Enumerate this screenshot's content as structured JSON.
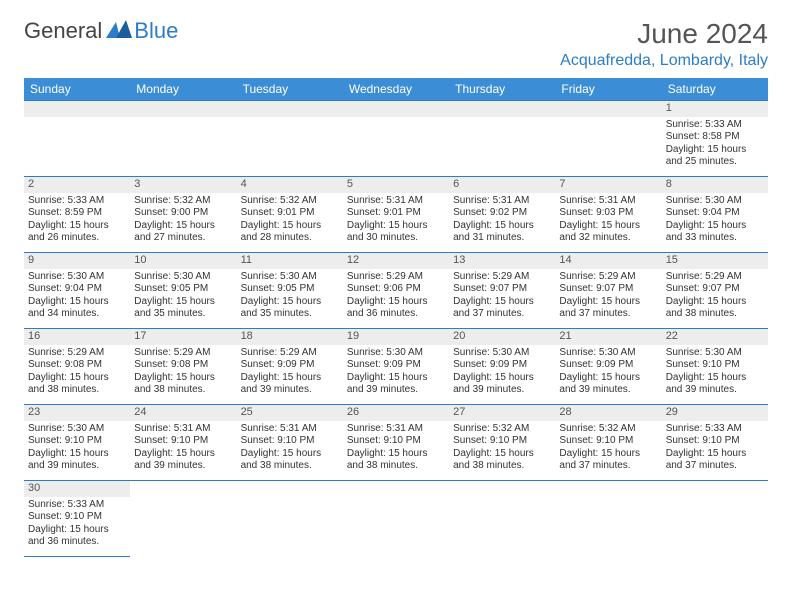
{
  "brand": {
    "part1": "General",
    "part2": "Blue"
  },
  "title": "June 2024",
  "location": "Acquafredda, Lombardy, Italy",
  "colors": {
    "header_bg": "#3b8ed6",
    "accent": "#2b7dc9",
    "daynum_bg": "#ededed",
    "text": "#333333",
    "title_text": "#555555"
  },
  "weekdays": [
    "Sunday",
    "Monday",
    "Tuesday",
    "Wednesday",
    "Thursday",
    "Friday",
    "Saturday"
  ],
  "weeks": [
    [
      null,
      null,
      null,
      null,
      null,
      null,
      {
        "n": "1",
        "sunrise": "Sunrise: 5:33 AM",
        "sunset": "Sunset: 8:58 PM",
        "day1": "Daylight: 15 hours",
        "day2": "and 25 minutes."
      }
    ],
    [
      {
        "n": "2",
        "sunrise": "Sunrise: 5:33 AM",
        "sunset": "Sunset: 8:59 PM",
        "day1": "Daylight: 15 hours",
        "day2": "and 26 minutes."
      },
      {
        "n": "3",
        "sunrise": "Sunrise: 5:32 AM",
        "sunset": "Sunset: 9:00 PM",
        "day1": "Daylight: 15 hours",
        "day2": "and 27 minutes."
      },
      {
        "n": "4",
        "sunrise": "Sunrise: 5:32 AM",
        "sunset": "Sunset: 9:01 PM",
        "day1": "Daylight: 15 hours",
        "day2": "and 28 minutes."
      },
      {
        "n": "5",
        "sunrise": "Sunrise: 5:31 AM",
        "sunset": "Sunset: 9:01 PM",
        "day1": "Daylight: 15 hours",
        "day2": "and 30 minutes."
      },
      {
        "n": "6",
        "sunrise": "Sunrise: 5:31 AM",
        "sunset": "Sunset: 9:02 PM",
        "day1": "Daylight: 15 hours",
        "day2": "and 31 minutes."
      },
      {
        "n": "7",
        "sunrise": "Sunrise: 5:31 AM",
        "sunset": "Sunset: 9:03 PM",
        "day1": "Daylight: 15 hours",
        "day2": "and 32 minutes."
      },
      {
        "n": "8",
        "sunrise": "Sunrise: 5:30 AM",
        "sunset": "Sunset: 9:04 PM",
        "day1": "Daylight: 15 hours",
        "day2": "and 33 minutes."
      }
    ],
    [
      {
        "n": "9",
        "sunrise": "Sunrise: 5:30 AM",
        "sunset": "Sunset: 9:04 PM",
        "day1": "Daylight: 15 hours",
        "day2": "and 34 minutes."
      },
      {
        "n": "10",
        "sunrise": "Sunrise: 5:30 AM",
        "sunset": "Sunset: 9:05 PM",
        "day1": "Daylight: 15 hours",
        "day2": "and 35 minutes."
      },
      {
        "n": "11",
        "sunrise": "Sunrise: 5:30 AM",
        "sunset": "Sunset: 9:05 PM",
        "day1": "Daylight: 15 hours",
        "day2": "and 35 minutes."
      },
      {
        "n": "12",
        "sunrise": "Sunrise: 5:29 AM",
        "sunset": "Sunset: 9:06 PM",
        "day1": "Daylight: 15 hours",
        "day2": "and 36 minutes."
      },
      {
        "n": "13",
        "sunrise": "Sunrise: 5:29 AM",
        "sunset": "Sunset: 9:07 PM",
        "day1": "Daylight: 15 hours",
        "day2": "and 37 minutes."
      },
      {
        "n": "14",
        "sunrise": "Sunrise: 5:29 AM",
        "sunset": "Sunset: 9:07 PM",
        "day1": "Daylight: 15 hours",
        "day2": "and 37 minutes."
      },
      {
        "n": "15",
        "sunrise": "Sunrise: 5:29 AM",
        "sunset": "Sunset: 9:07 PM",
        "day1": "Daylight: 15 hours",
        "day2": "and 38 minutes."
      }
    ],
    [
      {
        "n": "16",
        "sunrise": "Sunrise: 5:29 AM",
        "sunset": "Sunset: 9:08 PM",
        "day1": "Daylight: 15 hours",
        "day2": "and 38 minutes."
      },
      {
        "n": "17",
        "sunrise": "Sunrise: 5:29 AM",
        "sunset": "Sunset: 9:08 PM",
        "day1": "Daylight: 15 hours",
        "day2": "and 38 minutes."
      },
      {
        "n": "18",
        "sunrise": "Sunrise: 5:29 AM",
        "sunset": "Sunset: 9:09 PM",
        "day1": "Daylight: 15 hours",
        "day2": "and 39 minutes."
      },
      {
        "n": "19",
        "sunrise": "Sunrise: 5:30 AM",
        "sunset": "Sunset: 9:09 PM",
        "day1": "Daylight: 15 hours",
        "day2": "and 39 minutes."
      },
      {
        "n": "20",
        "sunrise": "Sunrise: 5:30 AM",
        "sunset": "Sunset: 9:09 PM",
        "day1": "Daylight: 15 hours",
        "day2": "and 39 minutes."
      },
      {
        "n": "21",
        "sunrise": "Sunrise: 5:30 AM",
        "sunset": "Sunset: 9:09 PM",
        "day1": "Daylight: 15 hours",
        "day2": "and 39 minutes."
      },
      {
        "n": "22",
        "sunrise": "Sunrise: 5:30 AM",
        "sunset": "Sunset: 9:10 PM",
        "day1": "Daylight: 15 hours",
        "day2": "and 39 minutes."
      }
    ],
    [
      {
        "n": "23",
        "sunrise": "Sunrise: 5:30 AM",
        "sunset": "Sunset: 9:10 PM",
        "day1": "Daylight: 15 hours",
        "day2": "and 39 minutes."
      },
      {
        "n": "24",
        "sunrise": "Sunrise: 5:31 AM",
        "sunset": "Sunset: 9:10 PM",
        "day1": "Daylight: 15 hours",
        "day2": "and 39 minutes."
      },
      {
        "n": "25",
        "sunrise": "Sunrise: 5:31 AM",
        "sunset": "Sunset: 9:10 PM",
        "day1": "Daylight: 15 hours",
        "day2": "and 38 minutes."
      },
      {
        "n": "26",
        "sunrise": "Sunrise: 5:31 AM",
        "sunset": "Sunset: 9:10 PM",
        "day1": "Daylight: 15 hours",
        "day2": "and 38 minutes."
      },
      {
        "n": "27",
        "sunrise": "Sunrise: 5:32 AM",
        "sunset": "Sunset: 9:10 PM",
        "day1": "Daylight: 15 hours",
        "day2": "and 38 minutes."
      },
      {
        "n": "28",
        "sunrise": "Sunrise: 5:32 AM",
        "sunset": "Sunset: 9:10 PM",
        "day1": "Daylight: 15 hours",
        "day2": "and 37 minutes."
      },
      {
        "n": "29",
        "sunrise": "Sunrise: 5:33 AM",
        "sunset": "Sunset: 9:10 PM",
        "day1": "Daylight: 15 hours",
        "day2": "and 37 minutes."
      }
    ],
    [
      {
        "n": "30",
        "sunrise": "Sunrise: 5:33 AM",
        "sunset": "Sunset: 9:10 PM",
        "day1": "Daylight: 15 hours",
        "day2": "and 36 minutes."
      },
      null,
      null,
      null,
      null,
      null,
      null
    ]
  ]
}
